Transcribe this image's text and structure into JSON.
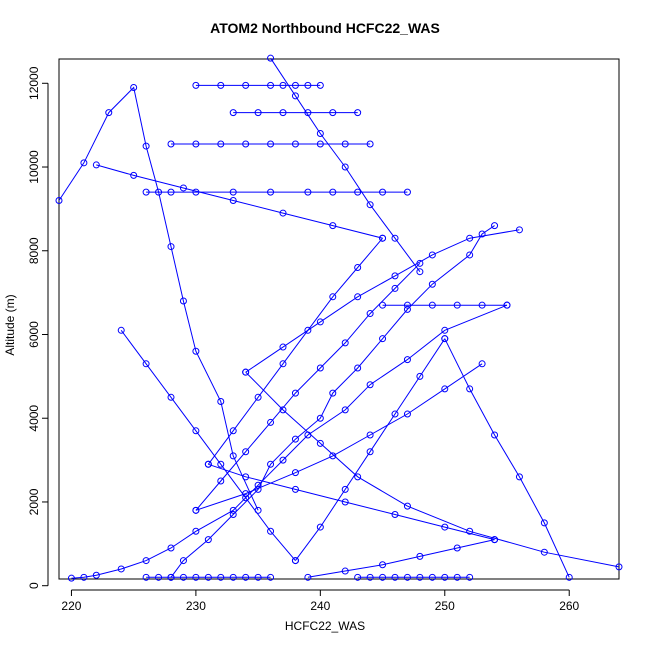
{
  "chart_data": {
    "type": "line",
    "title": "ATOM2 Northbound HCFC22_WAS",
    "xlabel": "HCFC22_WAS",
    "ylabel": "Altitude (m)",
    "xlim": [
      219,
      264
    ],
    "ylim": [
      160,
      12580
    ],
    "xticks": [
      220,
      230,
      240,
      250,
      260
    ],
    "yticks": [
      0,
      2000,
      4000,
      6000,
      8000,
      10000,
      12000
    ],
    "grid": false,
    "legend": "none",
    "color": "#0000ff",
    "marker": "open-circle",
    "series": [
      {
        "x": [
          228,
          229,
          231,
          233,
          235,
          236,
          238,
          240,
          241,
          243,
          245,
          247,
          249,
          252,
          253,
          254
        ],
        "y": [
          200,
          600,
          1100,
          1700,
          2300,
          2900,
          3500,
          4000,
          4600,
          5200,
          5900,
          6600,
          7200,
          7900,
          8400,
          8600
        ]
      },
      {
        "x": [
          255,
          250,
          247,
          244,
          242,
          239,
          237,
          235,
          233,
          230,
          228,
          226,
          224,
          222,
          221,
          220
        ],
        "y": [
          6700,
          6100,
          5400,
          4800,
          4200,
          3600,
          3000,
          2400,
          1800,
          1300,
          900,
          600,
          400,
          250,
          200,
          180
        ]
      },
      {
        "x": [
          219,
          221,
          223,
          225,
          226,
          227,
          228,
          229,
          230,
          232,
          233,
          235
        ],
        "y": [
          9200,
          10100,
          11300,
          11900,
          10500,
          9400,
          8100,
          6800,
          5600,
          4400,
          3100,
          1800
        ]
      },
      {
        "x": [
          226,
          227,
          228,
          229,
          230,
          231,
          232,
          233,
          234,
          235,
          236
        ],
        "y": [
          200,
          200,
          200,
          200,
          200,
          200,
          200,
          200,
          200,
          200,
          200
        ]
      },
      {
        "x": [
          243,
          244,
          245,
          246,
          247,
          248,
          249,
          250,
          251,
          252
        ],
        "y": [
          200,
          200,
          200,
          200,
          200,
          200,
          200,
          200,
          200,
          200
        ]
      },
      {
        "x": [
          230,
          232,
          234,
          236,
          237,
          238,
          239,
          240
        ],
        "y": [
          11950,
          11950,
          11950,
          11950,
          11950,
          11950,
          11950,
          11950
        ]
      },
      {
        "x": [
          233,
          235,
          237,
          239,
          241,
          243
        ],
        "y": [
          11300,
          11300,
          11300,
          11300,
          11300,
          11300
        ]
      },
      {
        "x": [
          228,
          230,
          232,
          234,
          236,
          238,
          240,
          242,
          244
        ],
        "y": [
          10550,
          10550,
          10550,
          10550,
          10550,
          10550,
          10550,
          10550,
          10550
        ]
      },
      {
        "x": [
          226,
          228,
          230,
          233,
          236,
          239,
          241,
          243,
          245,
          247
        ],
        "y": [
          9400,
          9400,
          9400,
          9400,
          9400,
          9400,
          9400,
          9400,
          9400,
          9400
        ]
      },
      {
        "x": [
          245,
          247,
          249,
          251,
          253,
          255
        ],
        "y": [
          6700,
          6700,
          6700,
          6700,
          6700,
          6700
        ]
      },
      {
        "x": [
          236,
          238,
          240,
          242,
          244,
          246,
          248
        ],
        "y": [
          12600,
          11700,
          10800,
          10000,
          9100,
          8300,
          7500
        ]
      },
      {
        "x": [
          248,
          246,
          244,
          242,
          240,
          238,
          236,
          234,
          232,
          230
        ],
        "y": [
          7700,
          7100,
          6500,
          5800,
          5200,
          4600,
          3900,
          3200,
          2500,
          1800
        ]
      },
      {
        "x": [
          230,
          234,
          238,
          241,
          244,
          247,
          250,
          253
        ],
        "y": [
          1800,
          2200,
          2700,
          3100,
          3600,
          4100,
          4700,
          5300
        ]
      },
      {
        "x": [
          264,
          258,
          252,
          247,
          243,
          240,
          237,
          234
        ],
        "y": [
          450,
          800,
          1300,
          1900,
          2600,
          3400,
          4200,
          5100
        ]
      },
      {
        "x": [
          234,
          237,
          240,
          243,
          246,
          249,
          252,
          256
        ],
        "y": [
          5100,
          5700,
          6300,
          6900,
          7400,
          7900,
          8300,
          8500
        ]
      },
      {
        "x": [
          224,
          226,
          228,
          230,
          232,
          234,
          236,
          238
        ],
        "y": [
          6100,
          5300,
          4500,
          3700,
          2900,
          2100,
          1300,
          600
        ]
      },
      {
        "x": [
          238,
          240,
          242,
          244,
          246,
          248,
          250
        ],
        "y": [
          600,
          1400,
          2300,
          3200,
          4100,
          5000,
          5900
        ]
      },
      {
        "x": [
          250,
          252,
          254,
          256,
          258,
          260
        ],
        "y": [
          5900,
          4700,
          3600,
          2600,
          1500,
          200
        ]
      },
      {
        "x": [
          222,
          225,
          229,
          233,
          237,
          241,
          245
        ],
        "y": [
          10050,
          9800,
          9500,
          9200,
          8900,
          8600,
          8300
        ]
      },
      {
        "x": [
          245,
          243,
          241,
          239,
          237,
          235,
          233,
          231
        ],
        "y": [
          8300,
          7600,
          6900,
          6100,
          5300,
          4500,
          3700,
          2900
        ]
      },
      {
        "x": [
          231,
          234,
          238,
          242,
          246,
          250,
          254
        ],
        "y": [
          2900,
          2600,
          2300,
          2000,
          1700,
          1400,
          1100
        ]
      },
      {
        "x": [
          254,
          251,
          248,
          245,
          242,
          239
        ],
        "y": [
          1100,
          900,
          700,
          500,
          350,
          200
        ]
      }
    ]
  }
}
